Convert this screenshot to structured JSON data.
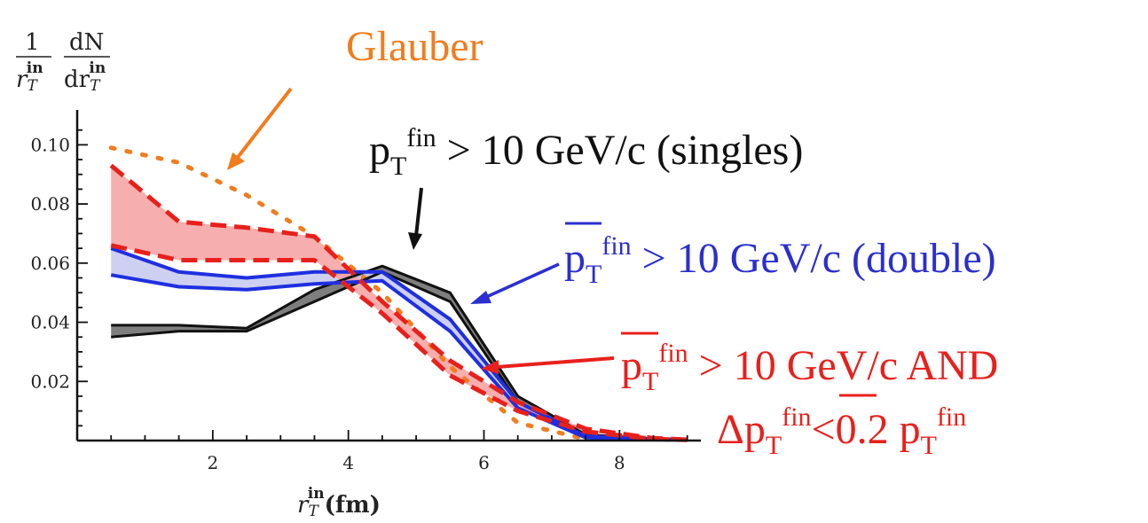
{
  "chart_data": {
    "type": "line",
    "xlabel": {
      "var": "r",
      "sub": "T",
      "sup": "in",
      "unit": "(fm)"
    },
    "ylabel": {
      "num1": "1",
      "den1_var": "r",
      "den1_sub": "T",
      "den1_sup": "in",
      "num2": "dN",
      "den2_pre": "dr",
      "den2_sub": "T",
      "den2_sup": "in"
    },
    "xlim": [
      0,
      9.2
    ],
    "ylim": [
      0,
      0.11
    ],
    "x_ticks": [
      2,
      4,
      6,
      8
    ],
    "y_ticks": [
      0.1,
      0.08,
      0.06,
      0.04,
      0.02
    ],
    "y_tick_labels": [
      "0.10",
      "0.08",
      "0.06",
      "0.04",
      "0.02"
    ],
    "x_tick_labels": [
      "2",
      "4",
      "6",
      "8"
    ],
    "colors": {
      "glauber": "#f07d1e",
      "singles": "#111111",
      "double": "#1f2fe0",
      "and": "#e8201c",
      "red_fill": "#f5a0a0",
      "blue_fill": "#c8cbef",
      "black_fill": "#707070"
    },
    "series": [
      {
        "name": "Glauber",
        "style": "dotted",
        "x": [
          0.5,
          1.5,
          2.5,
          3.5,
          4.5,
          5.5,
          6.5,
          7.5
        ],
        "y": [
          0.099,
          0.094,
          0.083,
          0.069,
          0.05,
          0.025,
          0.006,
          0.0005
        ]
      },
      {
        "name": "singles",
        "style": "band",
        "x": [
          0.5,
          1.5,
          2.5,
          3.5,
          4.5,
          5.5,
          6.5,
          7.5,
          8.5,
          9.0
        ],
        "upper": [
          0.039,
          0.039,
          0.038,
          0.051,
          0.059,
          0.05,
          0.015,
          0.002,
          0.0005,
          0.0003
        ],
        "lower": [
          0.035,
          0.037,
          0.037,
          0.047,
          0.057,
          0.047,
          0.013,
          0.001,
          0.0003,
          0.0002
        ]
      },
      {
        "name": "double",
        "style": "band",
        "x": [
          0.5,
          1.5,
          2.5,
          3.5,
          4.5,
          5.5,
          6.5,
          7.5,
          8.5,
          9.0
        ],
        "upper": [
          0.065,
          0.057,
          0.055,
          0.057,
          0.057,
          0.041,
          0.013,
          0.0015,
          0.0005,
          0.0003
        ],
        "lower": [
          0.056,
          0.052,
          0.051,
          0.053,
          0.054,
          0.037,
          0.011,
          0.001,
          0.0003,
          0.0002
        ]
      },
      {
        "name": "AND",
        "style": "band-dashed",
        "x": [
          0.5,
          1.5,
          2.5,
          3.5,
          4.5,
          5.5,
          6.5,
          7.5,
          8.5,
          9.0
        ],
        "upper": [
          0.093,
          0.074,
          0.072,
          0.069,
          0.047,
          0.027,
          0.013,
          0.004,
          0.0008,
          0.0003
        ],
        "lower": [
          0.066,
          0.061,
          0.061,
          0.061,
          0.043,
          0.022,
          0.01,
          0.003,
          0.0005,
          0.0002
        ]
      }
    ]
  },
  "annotations": {
    "glauber": "Glauber",
    "singles": {
      "p": "p",
      "sub": "T",
      "sup": "fin",
      "rest": " > 10 GeV/c (singles)"
    },
    "double": {
      "p": "p",
      "sub": "T",
      "sup": "fin",
      "rest": " > 10 GeV/c (double)"
    },
    "and_line1": {
      "p": "p",
      "sub": "T",
      "sup": "fin",
      "rest": " > 10 GeV/c AND"
    },
    "and_line2": {
      "delta": "Δp",
      "sub": "T",
      "sup": "fin",
      "mid": "<0.2 ",
      "p": "p",
      "sub2": "T",
      "sup2": "fin"
    }
  }
}
